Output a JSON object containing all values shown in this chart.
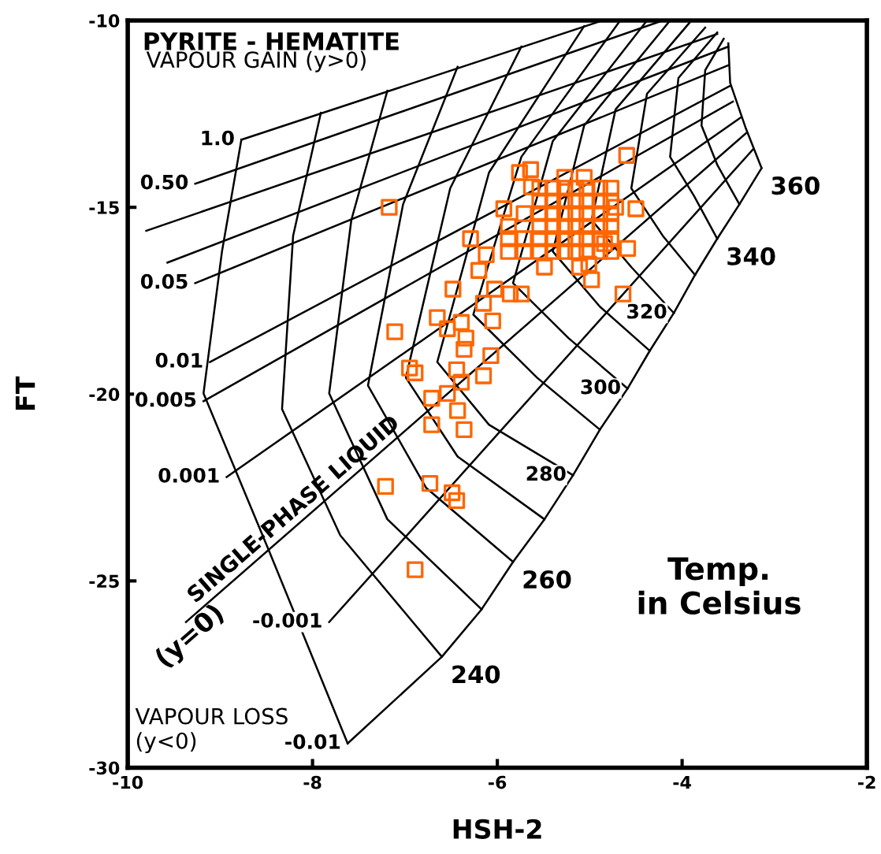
{
  "chart_data": {
    "type": "line",
    "title": "PYRITE - HEMATITE",
    "xlabel": "HSH-2",
    "ylabel": "FT",
    "xlim": [
      -10,
      -2
    ],
    "ylim": [
      -30,
      -10
    ],
    "xticks": [
      -10,
      -8,
      -6,
      -4,
      -2
    ],
    "yticks": [
      -10,
      -15,
      -20,
      -25,
      -30
    ],
    "grid": false,
    "legend": false,
    "annotations": [
      "VAPOUR GAIN (y>0)",
      "VAPOUR LOSS\n(y<0)",
      "SINGLE-PHASE LIQUID",
      "(y=0)",
      "Temp.\nin Celsius"
    ],
    "series": [
      {
        "color": "#000000",
        "name": "1.0",
        "x": [
          -4.86,
          -8.77
        ],
        "values": [
          -10,
          -13.19
        ]
      },
      {
        "color": "#000000",
        "name": "0.50",
        "x": [
          -4.21,
          -9.27
        ],
        "values": [
          -10,
          -14.37
        ]
      },
      {
        "type": "line",
        "color": "#000000",
        "x": [
          -3.62,
          -9.8
        ],
        "values": [
          -10.36,
          -15.63
        ]
      },
      {
        "type": "line",
        "color": "#000000",
        "x": [
          -3.5,
          -9.57
        ],
        "values": [
          -10.7,
          -16.48
        ]
      },
      {
        "type": "line",
        "color": "#000000",
        "name": "0.05",
        "x": [
          -3.5,
          -9.27
        ],
        "values": [
          -11.2,
          -17.03
        ]
      },
      {
        "type": "line",
        "color": "#000000",
        "name": "0.01",
        "x": [
          -3.48,
          -9.11
        ],
        "values": [
          -11.75,
          -19.14
        ]
      },
      {
        "type": "line",
        "color": "#000000",
        "name": "0.005",
        "x": [
          -3.45,
          -9.18
        ],
        "values": [
          -12.17,
          -20.19
        ]
      },
      {
        "type": "line",
        "color": "#000000",
        "name": "0.001",
        "x": [
          -3.36,
          -8.93
        ],
        "values": [
          -12.59,
          -22.22
        ]
      },
      {
        "type": "line",
        "color": "#000000",
        "x": [
          -3.31,
          -9.37
        ],
        "values": [
          -13.02,
          -26.1
        ]
      },
      {
        "type": "line",
        "color": "#000000",
        "name": "-0.001",
        "x": [
          -3.23,
          -7.82
        ],
        "values": [
          -13.44,
          -26.1
        ]
      },
      {
        "type": "line",
        "color": "#000000",
        "name": "-0.01",
        "x": [
          -3.14,
          -3.38,
          -3.62,
          -3.86,
          -4.09,
          -4.35,
          -4.59,
          -4.89,
          -5.18,
          -5.49,
          -5.83,
          -6.17,
          -6.6,
          -7.62
        ],
        "values": [
          -13.95,
          -14.92,
          -15.84,
          -16.81,
          -17.83,
          -18.84,
          -19.85,
          -20.95,
          -22.17,
          -23.35,
          -24.49,
          -25.76,
          -27.03,
          -29.35
        ]
      },
      {
        "type": "line",
        "color": "#000000",
        "x": [
          -8.77,
          -8.98,
          -9.18,
          -8.47,
          -7.62
        ],
        "values": [
          -13.19,
          -16.18,
          -19.98,
          -24.2,
          -29.35
        ]
      },
      {
        "type": "line",
        "color": "#000000",
        "name": "240",
        "x": [
          -7.91,
          -8.21,
          -8.33,
          -7.7,
          -6.6
        ],
        "values": [
          -12.47,
          -15.76,
          -20.4,
          -23.78,
          -27.03
        ]
      },
      {
        "type": "line",
        "color": "#000000",
        "x": [
          -7.19,
          -7.58,
          -7.82,
          -7.19,
          -6.17
        ],
        "values": [
          -11.88,
          -15.34,
          -19.98,
          -23.35,
          -25.76
        ]
      },
      {
        "type": "line",
        "color": "#000000",
        "name": "260",
        "x": [
          -6.43,
          -7.02,
          -7.4,
          -6.77,
          -5.83
        ],
        "values": [
          -11.24,
          -14.92,
          -19.77,
          -22.51,
          -24.49
        ]
      },
      {
        "type": "line",
        "color": "#000000",
        "x": [
          -5.74,
          -6.51,
          -6.99,
          -6.43,
          -5.49
        ],
        "values": [
          -10.7,
          -14.49,
          -19.56,
          -21.67,
          -23.35
        ]
      },
      {
        "type": "line",
        "color": "#000000",
        "name": "280",
        "x": [
          -5.06,
          -6.09,
          -6.65,
          -6.09,
          -5.18
        ],
        "values": [
          -10.15,
          -14.07,
          -19.14,
          -20.82,
          -22.17
        ]
      },
      {
        "type": "line",
        "color": "#000000",
        "x": [
          -4.67,
          -5.74,
          -6.26,
          -5.57,
          -4.89
        ],
        "values": [
          -10,
          -13.65,
          -17.87,
          -19.56,
          -20.95
        ]
      },
      {
        "type": "line",
        "color": "#000000",
        "name": "300",
        "x": [
          -4.38,
          -5.4,
          -5.83,
          -5.23,
          -4.59
        ],
        "values": [
          -10,
          -13.23,
          -17.03,
          -18.5,
          -19.85
        ]
      },
      {
        "type": "line",
        "color": "#000000",
        "x": [
          -4.13,
          -5.06,
          -5.4,
          -4.89,
          -4.35
        ],
        "values": [
          -10,
          -12.81,
          -16.18,
          -17.66,
          -18.84
        ]
      },
      {
        "type": "line",
        "color": "#000000",
        "name": "320",
        "x": [
          -3.92,
          -4.72,
          -4.98,
          -4.55,
          -4.09
        ],
        "values": [
          -10.06,
          -12.38,
          -15.34,
          -16.6,
          -17.83
        ]
      },
      {
        "type": "line",
        "color": "#000000",
        "x": [
          -3.75,
          -4.38,
          -4.55,
          -4.21,
          -3.86
        ],
        "values": [
          -10.19,
          -11.96,
          -14.49,
          -15.76,
          -16.81
        ]
      },
      {
        "type": "line",
        "color": "#000000",
        "name": "340",
        "x": [
          -3.62,
          -4.04,
          -4.13,
          -3.87,
          -3.62
        ],
        "values": [
          -10.32,
          -11.54,
          -13.65,
          -14.7,
          -15.84
        ]
      },
      {
        "type": "line",
        "color": "#000000",
        "x": [
          -3.55,
          -3.75,
          -3.79,
          -3.62,
          -3.38
        ],
        "values": [
          -10.49,
          -11.33,
          -12.81,
          -13.86,
          -14.92
        ]
      },
      {
        "color": "#000000",
        "name": "360",
        "x": [
          -3.5,
          -3.48,
          -3.31,
          -3.14
        ],
        "values": [
          -10.61,
          -11.67,
          -12.89,
          -13.95
        ]
      },
      {
        "type": "scatter",
        "color": "#ff6600",
        "marker": "square",
        "x": [
          -4.6,
          -7.17,
          -5.76,
          -5.64,
          -5.63,
          -5.93,
          -6.29,
          -6.12,
          -6.2,
          -6.48,
          -6.03,
          -5.86,
          -5.74,
          -6.15,
          -6.65,
          -6.54,
          -6.39,
          -6.05,
          -7.11,
          -6.34,
          -6.36,
          -6.07,
          -6.95,
          -6.89,
          -6.44,
          -6.15,
          -6.39,
          -6.54,
          -6.71,
          -6.43,
          -6.71,
          -6.36,
          -7.21,
          -6.73,
          -6.49,
          -6.44,
          -6.89,
          -4.5,
          -4.72,
          -4.59,
          -4.64,
          -4.98,
          -4.84,
          -5.49,
          -5.11,
          -5.01,
          -5.27,
          -5.06,
          -5.54,
          -5.54,
          -5.54,
          -5.54,
          -5.54,
          -5.54,
          -5.4,
          -5.4,
          -5.4,
          -5.4,
          -5.4,
          -5.4,
          -5.27,
          -5.27,
          -5.27,
          -5.27,
          -5.27,
          -5.27,
          -5.15,
          -5.15,
          -5.15,
          -5.15,
          -5.15,
          -5.15,
          -5.03,
          -5.03,
          -5.03,
          -5.03,
          -5.03,
          -5.03,
          -4.89,
          -4.89,
          -4.89,
          -4.89,
          -4.89,
          -4.89,
          -4.77,
          -4.77,
          -4.77,
          -4.77,
          -4.77,
          -4.77,
          -5.88,
          -5.88,
          -5.88,
          -5.71,
          -5.71,
          -5.71
        ],
        "values": [
          -13.61,
          -15.0,
          -14.07,
          -13.99,
          -14.45,
          -15.04,
          -15.84,
          -16.27,
          -16.69,
          -17.19,
          -17.19,
          -17.32,
          -17.32,
          -17.57,
          -17.95,
          -18.25,
          -18.08,
          -18.04,
          -18.33,
          -18.5,
          -18.8,
          -18.97,
          -19.3,
          -19.43,
          -19.35,
          -19.51,
          -19.68,
          -19.98,
          -20.11,
          -20.44,
          -20.82,
          -20.95,
          -22.47,
          -22.39,
          -22.64,
          -22.85,
          -24.7,
          -15.04,
          -15.0,
          -16.1,
          -17.32,
          -16.94,
          -15.97,
          -16.6,
          -16.6,
          -16.52,
          -14.2,
          -14.2,
          -14.49,
          -14.83,
          -15.17,
          -15.51,
          -15.84,
          -16.18,
          -14.49,
          -14.83,
          -15.17,
          -15.51,
          -15.84,
          -16.18,
          -14.49,
          -14.83,
          -15.17,
          -15.51,
          -15.84,
          -16.18,
          -14.49,
          -14.83,
          -15.17,
          -15.51,
          -15.84,
          -16.18,
          -14.49,
          -14.83,
          -15.17,
          -15.51,
          -15.84,
          -16.18,
          -14.49,
          -14.83,
          -15.17,
          -15.51,
          -15.84,
          -16.18,
          -14.49,
          -14.83,
          -15.17,
          -15.51,
          -15.84,
          -16.18,
          -15.51,
          -15.84,
          -16.18,
          -15.17,
          -15.84,
          -16.18
        ]
      }
    ]
  }
}
